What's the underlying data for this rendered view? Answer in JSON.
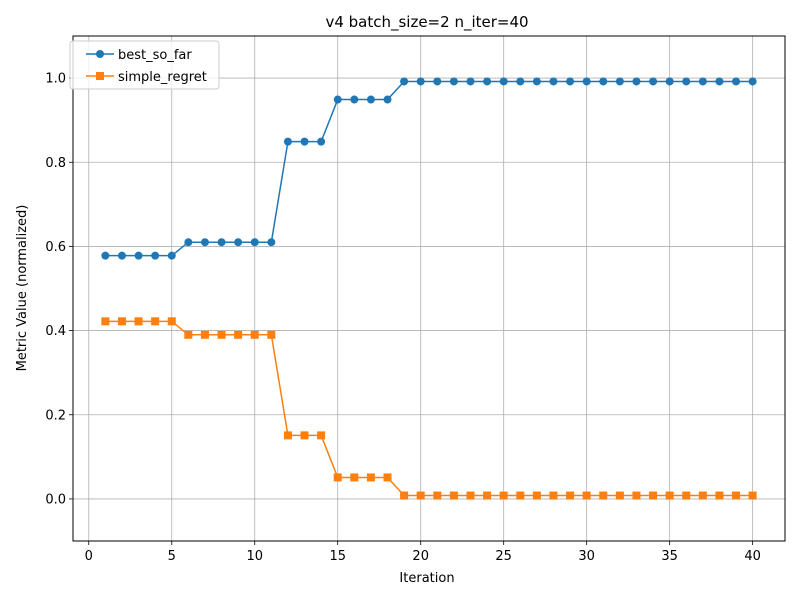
{
  "chart_data": {
    "type": "line",
    "title": "v4 batch_size=2 n_iter=40",
    "xlabel": "Iteration",
    "ylabel": "Metric Value (normalized)",
    "xlim": [
      -0.95,
      41.95
    ],
    "ylim": [
      -0.1,
      1.1
    ],
    "xticks": [
      0,
      5,
      10,
      15,
      20,
      25,
      30,
      35,
      40
    ],
    "yticks": [
      0.0,
      0.2,
      0.4,
      0.6,
      0.8,
      1.0
    ],
    "xtick_labels": [
      "0",
      "5",
      "10",
      "15",
      "20",
      "25",
      "30",
      "35",
      "40"
    ],
    "ytick_labels": [
      "0.0",
      "0.2",
      "0.4",
      "0.6",
      "0.8",
      "1.0"
    ],
    "grid": true,
    "legend_position": "top-left",
    "x": [
      1,
      2,
      3,
      4,
      5,
      6,
      7,
      8,
      9,
      10,
      11,
      12,
      13,
      14,
      15,
      16,
      17,
      18,
      19,
      20,
      21,
      22,
      23,
      24,
      25,
      26,
      27,
      28,
      29,
      30,
      31,
      32,
      33,
      34,
      35,
      36,
      37,
      38,
      39,
      40
    ],
    "series": [
      {
        "name": "best_so_far",
        "color": "#1f77b4",
        "marker": "circle",
        "values": [
          0.578,
          0.578,
          0.578,
          0.578,
          0.578,
          0.61,
          0.61,
          0.61,
          0.61,
          0.61,
          0.61,
          0.849,
          0.849,
          0.849,
          0.949,
          0.949,
          0.949,
          0.949,
          0.992,
          0.992,
          0.992,
          0.992,
          0.992,
          0.992,
          0.992,
          0.992,
          0.992,
          0.992,
          0.992,
          0.992,
          0.992,
          0.992,
          0.992,
          0.992,
          0.992,
          0.992,
          0.992,
          0.992,
          0.992,
          0.992
        ]
      },
      {
        "name": "simple_regret",
        "color": "#ff7f0e",
        "marker": "square",
        "values": [
          0.422,
          0.422,
          0.422,
          0.422,
          0.422,
          0.39,
          0.39,
          0.39,
          0.39,
          0.39,
          0.39,
          0.151,
          0.151,
          0.151,
          0.051,
          0.051,
          0.051,
          0.051,
          0.008,
          0.008,
          0.008,
          0.008,
          0.008,
          0.008,
          0.008,
          0.008,
          0.008,
          0.008,
          0.008,
          0.008,
          0.008,
          0.008,
          0.008,
          0.008,
          0.008,
          0.008,
          0.008,
          0.008,
          0.008,
          0.008
        ]
      }
    ]
  }
}
